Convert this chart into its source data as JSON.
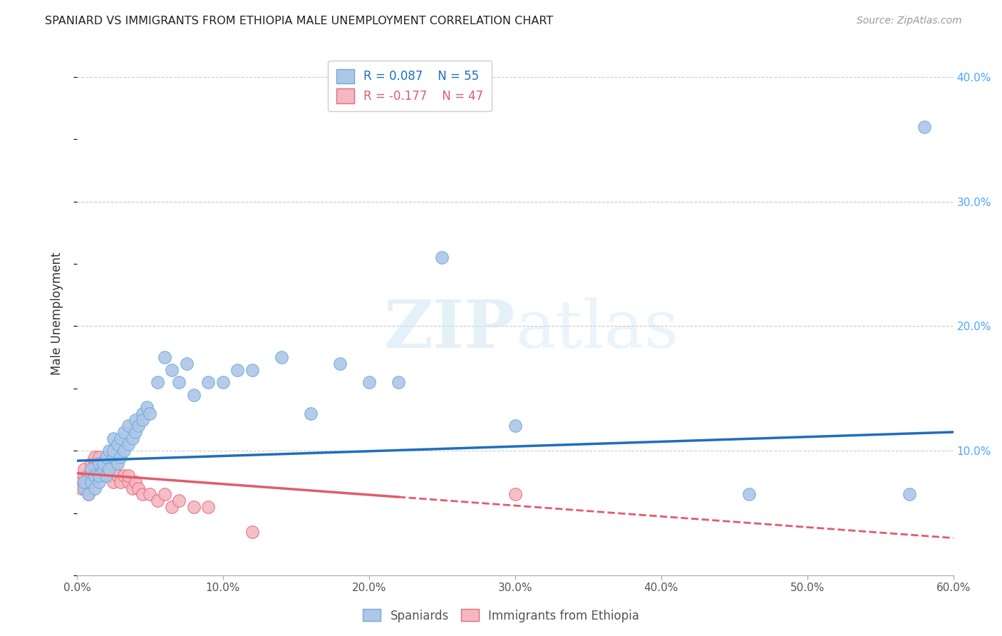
{
  "title": "SPANIARD VS IMMIGRANTS FROM ETHIOPIA MALE UNEMPLOYMENT CORRELATION CHART",
  "source": "Source: ZipAtlas.com",
  "ylabel": "Male Unemployment",
  "xlim": [
    0.0,
    0.6
  ],
  "ylim": [
    0.0,
    0.42
  ],
  "xticks": [
    0.0,
    0.1,
    0.2,
    0.3,
    0.4,
    0.5,
    0.6
  ],
  "xticklabels": [
    "0.0%",
    "10.0%",
    "20.0%",
    "30.0%",
    "40.0%",
    "50.0%",
    "60.0%"
  ],
  "yticks_right": [
    0.0,
    0.1,
    0.2,
    0.3,
    0.4
  ],
  "ytick_labels_right": [
    "",
    "10.0%",
    "20.0%",
    "30.0%",
    "40.0%"
  ],
  "grid_color": "#cccccc",
  "background_color": "#ffffff",
  "spaniards_x": [
    0.005,
    0.005,
    0.008,
    0.01,
    0.01,
    0.012,
    0.012,
    0.015,
    0.015,
    0.015,
    0.018,
    0.018,
    0.02,
    0.02,
    0.022,
    0.022,
    0.025,
    0.025,
    0.025,
    0.028,
    0.028,
    0.03,
    0.03,
    0.032,
    0.032,
    0.035,
    0.035,
    0.038,
    0.04,
    0.04,
    0.042,
    0.045,
    0.045,
    0.048,
    0.05,
    0.055,
    0.06,
    0.065,
    0.07,
    0.075,
    0.08,
    0.09,
    0.1,
    0.11,
    0.12,
    0.14,
    0.16,
    0.18,
    0.2,
    0.22,
    0.25,
    0.3,
    0.46,
    0.57,
    0.58
  ],
  "spaniards_y": [
    0.07,
    0.075,
    0.065,
    0.075,
    0.085,
    0.07,
    0.08,
    0.075,
    0.09,
    0.08,
    0.085,
    0.09,
    0.08,
    0.095,
    0.085,
    0.1,
    0.095,
    0.1,
    0.11,
    0.09,
    0.105,
    0.095,
    0.11,
    0.1,
    0.115,
    0.105,
    0.12,
    0.11,
    0.115,
    0.125,
    0.12,
    0.13,
    0.125,
    0.135,
    0.13,
    0.155,
    0.175,
    0.165,
    0.155,
    0.17,
    0.145,
    0.155,
    0.155,
    0.165,
    0.165,
    0.175,
    0.13,
    0.17,
    0.155,
    0.155,
    0.255,
    0.12,
    0.065,
    0.065,
    0.36
  ],
  "spaniards_color": "#aec6e8",
  "spaniards_edgecolor": "#6aaed6",
  "spaniards_R": 0.087,
  "spaniards_N": 55,
  "ethiopia_x": [
    0.003,
    0.003,
    0.005,
    0.005,
    0.005,
    0.007,
    0.007,
    0.008,
    0.008,
    0.008,
    0.01,
    0.01,
    0.01,
    0.012,
    0.012,
    0.012,
    0.015,
    0.015,
    0.015,
    0.015,
    0.018,
    0.018,
    0.02,
    0.02,
    0.02,
    0.022,
    0.022,
    0.025,
    0.025,
    0.028,
    0.03,
    0.032,
    0.035,
    0.035,
    0.038,
    0.04,
    0.042,
    0.045,
    0.05,
    0.055,
    0.06,
    0.065,
    0.07,
    0.08,
    0.09,
    0.12,
    0.3
  ],
  "ethiopia_y": [
    0.075,
    0.07,
    0.075,
    0.08,
    0.085,
    0.07,
    0.075,
    0.065,
    0.075,
    0.08,
    0.085,
    0.08,
    0.09,
    0.085,
    0.09,
    0.095,
    0.08,
    0.085,
    0.09,
    0.095,
    0.085,
    0.09,
    0.08,
    0.085,
    0.09,
    0.08,
    0.085,
    0.075,
    0.085,
    0.08,
    0.075,
    0.08,
    0.075,
    0.08,
    0.07,
    0.075,
    0.07,
    0.065,
    0.065,
    0.06,
    0.065,
    0.055,
    0.06,
    0.055,
    0.055,
    0.035,
    0.065
  ],
  "ethiopia_color": "#f4b8c1",
  "ethiopia_edgecolor": "#e8697d",
  "ethiopia_R": -0.177,
  "ethiopia_N": 47,
  "legend_spaniards": "Spaniards",
  "legend_ethiopia": "Immigrants from Ethiopia",
  "trendline_spaniards_color": "#1f6fba",
  "trendline_ethiopia_color": "#e05c6e",
  "trendline_ethiopia_style": "--",
  "trendline_spaniards_style": "-",
  "trend_sp_x0": 0.0,
  "trend_sp_y0": 0.092,
  "trend_sp_x1": 0.6,
  "trend_sp_y1": 0.115,
  "trend_et_x0": 0.0,
  "trend_et_y0": 0.082,
  "trend_et_x1": 0.6,
  "trend_et_y1": 0.03
}
